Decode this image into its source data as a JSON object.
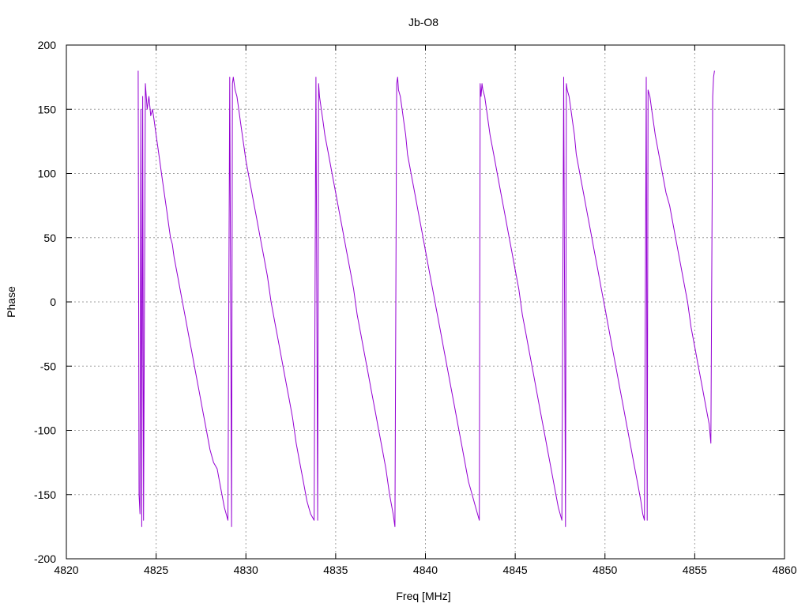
{
  "chart_data": {
    "type": "line",
    "title": "Jb-O8",
    "xlabel": "Freq [MHz]",
    "ylabel": "Phase",
    "xlim": [
      4820,
      4860
    ],
    "ylim": [
      -200,
      200
    ],
    "xticks": [
      4820,
      4825,
      4830,
      4835,
      4840,
      4845,
      4850,
      4855,
      4860
    ],
    "yticks": [
      -200,
      -150,
      -100,
      -50,
      0,
      50,
      100,
      150,
      200
    ],
    "xtick_labels": [
      "4820",
      "4825",
      "4830",
      "4835",
      "4840",
      "4845",
      "4850",
      "4855",
      "4860"
    ],
    "ytick_labels": [
      "-200",
      "-150",
      "-100",
      "-50",
      "0",
      "50",
      "100",
      "150",
      "200"
    ],
    "grid": true,
    "legend": "none",
    "line_color": "#9400d3",
    "frame_color": "#000000",
    "grid_color": "#a0a0a0",
    "series": [
      {
        "x": [
          4824.0,
          4824.05,
          4824.1,
          4824.15,
          4824.2,
          4824.25,
          4824.3,
          4824.4,
          4824.5,
          4824.6,
          4824.7,
          4824.8,
          4824.9,
          4825.0,
          4825.1,
          4825.2,
          4825.3,
          4825.4,
          4825.5,
          4825.6,
          4825.7,
          4825.8,
          4825.9,
          4826.0,
          4826.2,
          4826.4,
          4826.6,
          4826.8,
          4827.0,
          4827.2,
          4827.4,
          4827.6,
          4827.8,
          4828.0,
          4828.2,
          4828.4,
          4828.6,
          4828.8,
          4829.0,
          4829.1,
          4829.2,
          4829.25,
          4829.3,
          4829.4,
          4829.5,
          4829.6,
          4829.7,
          4829.8,
          4829.9,
          4830.0,
          4830.2,
          4830.4,
          4830.6,
          4830.8,
          4831.0,
          4831.2,
          4831.4,
          4831.6,
          4831.8,
          4832.0,
          4832.2,
          4832.4,
          4832.6,
          4832.8,
          4833.0,
          4833.2,
          4833.4,
          4833.6,
          4833.8,
          4833.9,
          4834.0,
          4834.05,
          4834.1,
          4834.2,
          4834.3,
          4834.4,
          4834.6,
          4834.8,
          4835.0,
          4835.2,
          4835.4,
          4835.6,
          4835.8,
          4836.0,
          4836.2,
          4836.4,
          4836.6,
          4836.8,
          4837.0,
          4837.2,
          4837.4,
          4837.6,
          4837.8,
          4838.0,
          4838.2,
          4838.3,
          4838.4,
          4838.45,
          4838.5,
          4838.6,
          4838.7,
          4838.8,
          4838.9,
          4839.0,
          4839.2,
          4839.4,
          4839.6,
          4839.8,
          4840.0,
          4840.2,
          4840.4,
          4840.6,
          4840.8,
          4841.0,
          4841.2,
          4841.4,
          4841.6,
          4841.8,
          4842.0,
          4842.2,
          4842.4,
          4842.6,
          4842.8,
          4843.0,
          4843.05,
          4843.1,
          4843.15,
          4843.2,
          4843.3,
          4843.4,
          4843.5,
          4843.6,
          4843.8,
          4844.0,
          4844.2,
          4844.4,
          4844.6,
          4844.8,
          4845.0,
          4845.2,
          4845.4,
          4845.6,
          4845.8,
          4846.0,
          4846.2,
          4846.4,
          4846.6,
          4846.8,
          4847.0,
          4847.2,
          4847.4,
          4847.6,
          4847.7,
          4847.8,
          4847.85,
          4847.9,
          4848.0,
          4848.1,
          4848.2,
          4848.3,
          4848.4,
          4848.6,
          4848.8,
          4849.0,
          4849.2,
          4849.4,
          4849.6,
          4849.8,
          4850.0,
          4850.2,
          4850.4,
          4850.6,
          4850.8,
          4851.0,
          4851.2,
          4851.4,
          4851.6,
          4851.8,
          4852.0,
          4852.1,
          4852.2,
          4852.3,
          4852.35,
          4852.4,
          4852.5,
          4852.6,
          4852.7,
          4852.8,
          4853.0,
          4853.2,
          4853.4,
          4853.6,
          4853.8,
          4854.0,
          4854.2,
          4854.4,
          4854.6,
          4854.8,
          4855.0,
          4855.2,
          4855.4,
          4855.6,
          4855.8,
          4855.9,
          4856.0,
          4856.05,
          4856.1
        ],
        "y": [
          180,
          -150,
          -165,
          150,
          -175,
          160,
          -170,
          170,
          150,
          160,
          145,
          150,
          140,
          130,
          120,
          110,
          100,
          90,
          80,
          70,
          60,
          50,
          45,
          35,
          20,
          5,
          -10,
          -25,
          -40,
          -55,
          -70,
          -85,
          -100,
          -115,
          -125,
          -130,
          -145,
          -160,
          -170,
          175,
          -175,
          170,
          175,
          165,
          160,
          150,
          140,
          130,
          120,
          110,
          95,
          80,
          65,
          50,
          35,
          20,
          0,
          -15,
          -30,
          -45,
          -60,
          -75,
          -90,
          -110,
          -125,
          -140,
          -155,
          -165,
          -170,
          175,
          -170,
          170,
          160,
          150,
          140,
          130,
          115,
          100,
          85,
          70,
          55,
          40,
          25,
          10,
          -10,
          -25,
          -40,
          -55,
          -70,
          -85,
          -100,
          -115,
          -130,
          -150,
          -165,
          -175,
          170,
          175,
          165,
          160,
          150,
          140,
          130,
          115,
          100,
          85,
          70,
          55,
          40,
          25,
          10,
          -5,
          -20,
          -35,
          -50,
          -65,
          -80,
          -95,
          -110,
          -125,
          -140,
          -150,
          -160,
          -170,
          170,
          160,
          170,
          165,
          160,
          150,
          140,
          130,
          115,
          100,
          85,
          70,
          55,
          40,
          25,
          10,
          -10,
          -25,
          -40,
          -55,
          -70,
          -85,
          -100,
          -115,
          -130,
          -145,
          -160,
          -170,
          175,
          -175,
          170,
          165,
          160,
          150,
          140,
          130,
          115,
          100,
          85,
          70,
          55,
          40,
          25,
          10,
          -5,
          -20,
          -35,
          -50,
          -65,
          -80,
          -95,
          -110,
          -125,
          -140,
          -155,
          -165,
          -170,
          175,
          -170,
          165,
          160,
          150,
          140,
          130,
          115,
          100,
          85,
          75,
          60,
          45,
          30,
          15,
          0,
          -20,
          -35,
          -50,
          -65,
          -80,
          -95,
          -110,
          160,
          175,
          180
        ]
      }
    ]
  }
}
